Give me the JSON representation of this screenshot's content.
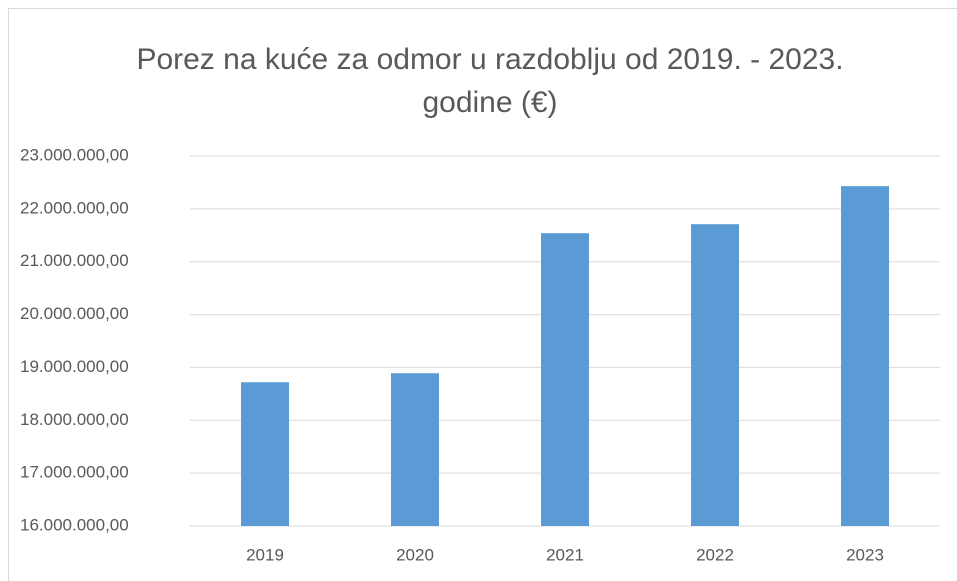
{
  "chart_data": {
    "type": "bar",
    "title": "Porez na kuće za odmor u razdoblju od 2019. - 2023. godine (€)",
    "categories": [
      "2019",
      "2020",
      "2021",
      "2022",
      "2023"
    ],
    "values": [
      18720000,
      18890000,
      21540000,
      21710000,
      22430000
    ],
    "color": "#5b9bd5",
    "ylim": [
      16000000,
      23000000
    ],
    "yticks": [
      {
        "value": 16000000,
        "label": "16.000.000,00"
      },
      {
        "value": 17000000,
        "label": "17.000.000,00"
      },
      {
        "value": 18000000,
        "label": "18.000.000,00"
      },
      {
        "value": 19000000,
        "label": "19.000.000,00"
      },
      {
        "value": 20000000,
        "label": "20.000.000,00"
      },
      {
        "value": 21000000,
        "label": "21.000.000,00"
      },
      {
        "value": 22000000,
        "label": "22.000.000,00"
      },
      {
        "value": 23000000,
        "label": "23.000.000,00"
      }
    ],
    "grid": true
  }
}
